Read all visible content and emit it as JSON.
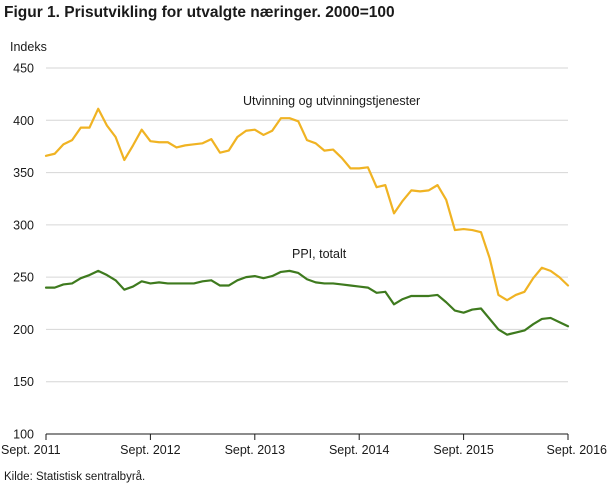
{
  "chart_data": {
    "type": "line",
    "title": "Figur 1. Prisutvikling for utvalgte næringer. 2000=100",
    "ylabel": "Indeks",
    "xlabel": "",
    "ylim": [
      100,
      450
    ],
    "yticks": [
      100,
      150,
      200,
      250,
      300,
      350,
      400,
      450
    ],
    "xtick_labels": [
      "Sept. 2011",
      "Sept. 2012",
      "Sept. 2013",
      "Sept. 2014",
      "Sept. 2015",
      "Sept. 2016"
    ],
    "grid": "horizontal",
    "x_start": "2011-09",
    "x_end": "2016-09",
    "series": [
      {
        "name": "Utvinning og utvinningstjenester",
        "color": "#f0b323",
        "values": [
          366,
          368,
          377,
          381,
          393,
          393,
          411,
          395,
          384,
          362,
          376,
          391,
          380,
          379,
          379,
          374,
          376,
          377,
          378,
          382,
          369,
          371,
          384,
          390,
          391,
          386,
          390,
          402,
          402,
          399,
          381,
          378,
          371,
          372,
          364,
          354,
          354,
          355,
          336,
          338,
          311,
          323,
          333,
          332,
          333,
          338,
          324,
          295,
          296,
          295,
          293,
          268,
          233,
          228,
          233,
          236,
          249,
          259,
          256,
          250,
          242
        ]
      },
      {
        "name": "PPI, totalt",
        "color": "#3e7a1e",
        "values": [
          240,
          240,
          243,
          244,
          249,
          252,
          256,
          252,
          247,
          238,
          241,
          246,
          244,
          245,
          244,
          244,
          244,
          244,
          246,
          247,
          242,
          242,
          247,
          250,
          251,
          249,
          251,
          255,
          256,
          254,
          248,
          245,
          244,
          244,
          243,
          242,
          241,
          240,
          235,
          236,
          224,
          229,
          232,
          232,
          232,
          233,
          226,
          218,
          216,
          219,
          220,
          210,
          200,
          195,
          197,
          199,
          205,
          210,
          211,
          207,
          203
        ]
      }
    ],
    "annotations": [
      {
        "text": "Utvinning og utvinningstjenester",
        "series": 0
      },
      {
        "text": "PPI, totalt",
        "series": 1
      }
    ]
  },
  "source": "Kilde: Statistisk sentralbyrå."
}
